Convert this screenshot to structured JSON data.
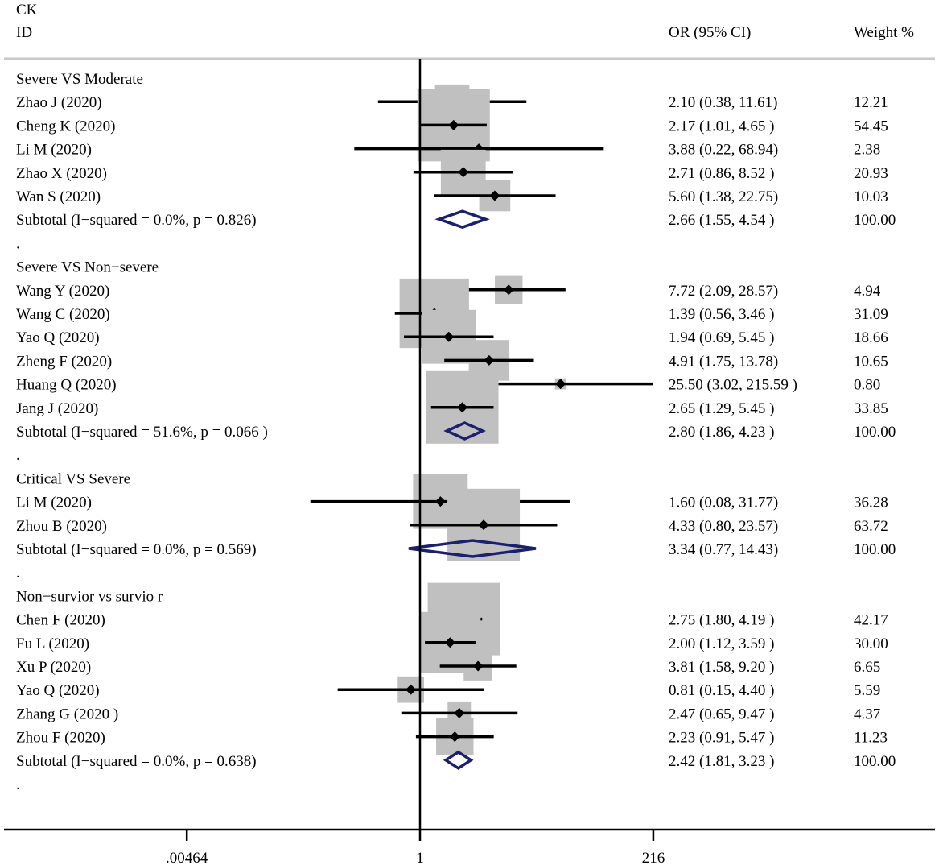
{
  "chart_data": {
    "type": "forest",
    "title": "CK",
    "columns": {
      "id": "ID",
      "or": "OR (95% CI)",
      "weight": "Weight %"
    },
    "x_axis": {
      "scale": "log",
      "ticks": [
        0.00464,
        1,
        216
      ],
      "tick_labels": [
        ".00464",
        "1",
        "216"
      ],
      "null_line": 1
    },
    "marker_color": "#000000",
    "box_color": "#c0c0c0",
    "diamond_color": "#1a1f6e",
    "groups": [
      {
        "name": "Severe VS Moderate",
        "studies": [
          {
            "id": "Zhao J  (2020)",
            "or": 2.1,
            "lo": 0.38,
            "hi": 11.61,
            "or_text": "2.10 (0.38, 11.61)",
            "weight": 12.21,
            "weight_text": "12.21"
          },
          {
            "id": "Cheng K  (2020)",
            "or": 2.17,
            "lo": 1.01,
            "hi": 4.65,
            "or_text": "2.17 (1.01, 4.65 )",
            "weight": 54.45,
            "weight_text": "54.45"
          },
          {
            "id": "Li M  (2020)",
            "or": 3.88,
            "lo": 0.22,
            "hi": 68.94,
            "or_text": "3.88 (0.22, 68.94)",
            "weight": 2.38,
            "weight_text": "2.38"
          },
          {
            "id": "Zhao X  (2020)",
            "or": 2.71,
            "lo": 0.86,
            "hi": 8.52,
            "or_text": "2.71 (0.86, 8.52 )",
            "weight": 20.93,
            "weight_text": "20.93"
          },
          {
            "id": "Wan S  (2020)",
            "or": 5.6,
            "lo": 1.38,
            "hi": 22.75,
            "or_text": "5.60 (1.38, 22.75)",
            "weight": 10.03,
            "weight_text": "10.03"
          }
        ],
        "subtotal": {
          "label": "Subtotal  (I−squared = 0.0%, p = 0.826)",
          "or": 2.66,
          "lo": 1.55,
          "hi": 4.54,
          "or_text": "2.66 (1.55, 4.54 )",
          "weight_text": "100.00"
        }
      },
      {
        "name": "Severe VS Non−severe",
        "studies": [
          {
            "id": "Wang Y  (2020)",
            "or": 7.72,
            "lo": 2.09,
            "hi": 28.57,
            "or_text": "7.72 (2.09, 28.57)",
            "weight": 4.94,
            "weight_text": "4.94"
          },
          {
            "id": "Wang C  (2020)",
            "or": 1.39,
            "lo": 0.56,
            "hi": 3.46,
            "or_text": "1.39 (0.56, 3.46 )",
            "weight": 31.09,
            "weight_text": "31.09"
          },
          {
            "id": "Yao Q  (2020)",
            "or": 1.94,
            "lo": 0.69,
            "hi": 5.45,
            "or_text": "1.94 (0.69, 5.45 )",
            "weight": 18.66,
            "weight_text": "18.66"
          },
          {
            "id": "Zheng F  (2020)",
            "or": 4.91,
            "lo": 1.75,
            "hi": 13.78,
            "or_text": "4.91 (1.75, 13.78)",
            "weight": 10.65,
            "weight_text": "10.65"
          },
          {
            "id": "Huang Q  (2020)",
            "or": 25.5,
            "lo": 3.02,
            "hi": 215.59,
            "or_text": "25.50 (3.02, 215.59  )",
            "weight": 0.8,
            "weight_text": "0.80"
          },
          {
            "id": "Jang J  (2020)",
            "or": 2.65,
            "lo": 1.29,
            "hi": 5.45,
            "or_text": "2.65 (1.29, 5.45 )",
            "weight": 33.85,
            "weight_text": "33.85"
          }
        ],
        "subtotal": {
          "label": "Subtotal  (I−squared = 51.6%, p = 0.066     )",
          "or": 2.8,
          "lo": 1.86,
          "hi": 4.23,
          "or_text": "2.80 (1.86, 4.23 )",
          "weight_text": "100.00"
        }
      },
      {
        "name": "Critical VS Severe",
        "studies": [
          {
            "id": "Li M  (2020)",
            "or": 1.6,
            "lo": 0.08,
            "hi": 31.77,
            "or_text": "1.60 (0.08, 31.77)",
            "weight": 36.28,
            "weight_text": "36.28"
          },
          {
            "id": "Zhou B  (2020)",
            "or": 4.33,
            "lo": 0.8,
            "hi": 23.57,
            "or_text": "4.33 (0.80, 23.57)",
            "weight": 63.72,
            "weight_text": "63.72"
          }
        ],
        "subtotal": {
          "label": "Subtotal  (I−squared = 0.0%, p = 0.569)",
          "or": 3.34,
          "lo": 0.77,
          "hi": 14.43,
          "or_text": "3.34 (0.77, 14.43)",
          "weight_text": "100.00"
        }
      },
      {
        "name": "Non−survior vs survio  r",
        "studies": [
          {
            "id": "Chen F  (2020)",
            "or": 2.75,
            "lo": 1.8,
            "hi": 4.19,
            "or_text": "2.75 (1.80, 4.19 )",
            "weight": 42.17,
            "weight_text": "42.17"
          },
          {
            "id": "Fu L  (2020)",
            "or": 2.0,
            "lo": 1.12,
            "hi": 3.59,
            "or_text": "2.00 (1.12, 3.59 )",
            "weight": 30.0,
            "weight_text": "30.00"
          },
          {
            "id": "Xu P  (2020)",
            "or": 3.81,
            "lo": 1.58,
            "hi": 9.2,
            "or_text": "3.81 (1.58, 9.20 )",
            "weight": 6.65,
            "weight_text": "6.65"
          },
          {
            "id": "Yao Q  (2020)",
            "or": 0.81,
            "lo": 0.15,
            "hi": 4.4,
            "or_text": "0.81 (0.15, 4.40 )",
            "weight": 5.59,
            "weight_text": "5.59"
          },
          {
            "id": "Zhang G  (2020 )",
            "or": 2.47,
            "lo": 0.65,
            "hi": 9.47,
            "or_text": "2.47 (0.65, 9.47 )",
            "weight": 4.37,
            "weight_text": "4.37"
          },
          {
            "id": "Zhou F  (2020)",
            "or": 2.23,
            "lo": 0.91,
            "hi": 5.47,
            "or_text": "2.23 (0.91, 5.47 )",
            "weight": 11.23,
            "weight_text": "11.23"
          }
        ],
        "subtotal": {
          "label": "Subtotal  (I−squared = 0.0%, p = 0.638)",
          "or": 2.42,
          "lo": 1.81,
          "hi": 3.23,
          "or_text": "2.42 (1.81, 3.23 )",
          "weight_text": "100.00"
        }
      }
    ],
    "separator": "."
  }
}
